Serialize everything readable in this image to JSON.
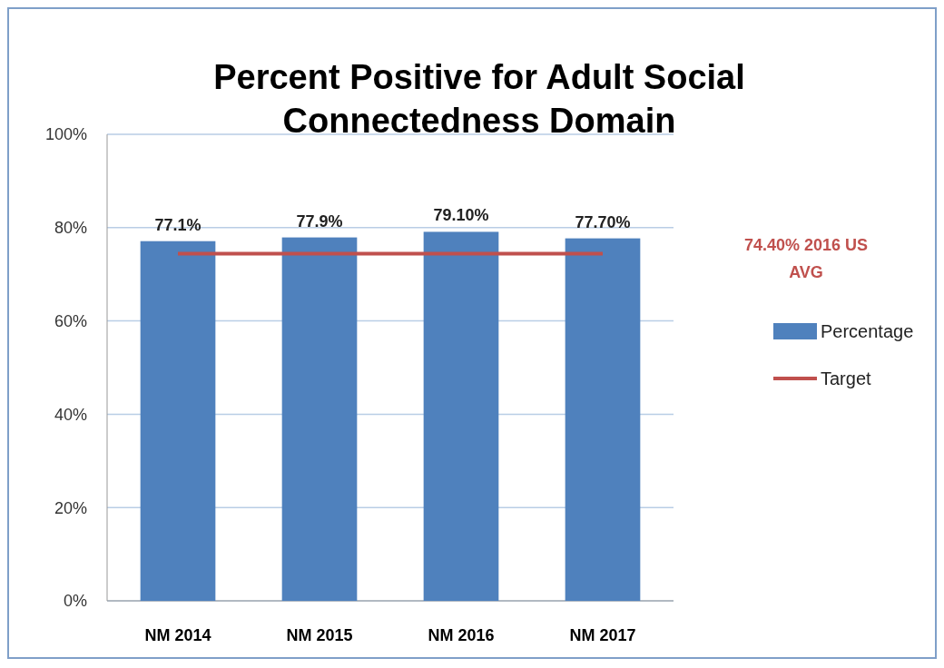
{
  "chart_data": {
    "type": "bar",
    "title": "Percent Positive for Adult Social Connectedness Domain",
    "categories": [
      "NM 2014",
      "NM 2015",
      "NM 2016",
      "NM 2017"
    ],
    "series": [
      {
        "name": "Percentage",
        "color": "#4f81bd",
        "values": [
          77.1,
          77.9,
          79.1,
          77.7
        ],
        "value_labels": [
          "77.1%",
          "77.9%",
          "79.10%",
          "77.70%"
        ]
      },
      {
        "name": "Target",
        "type": "line",
        "color": "#c0504d",
        "values": [
          74.4,
          74.4,
          74.4,
          74.4
        ]
      }
    ],
    "ylim": [
      0,
      100
    ],
    "yticks": [
      {
        "value": 0,
        "label": "0%"
      },
      {
        "value": 20,
        "label": "20%"
      },
      {
        "value": 40,
        "label": "40%"
      },
      {
        "value": 60,
        "label": "60%"
      },
      {
        "value": 80,
        "label": "80%"
      },
      {
        "value": 100,
        "label": "100%"
      }
    ],
    "grid": "y",
    "legend": "right",
    "marker": "none",
    "line_style": "solid",
    "annotations": [
      "74.40% 2016 US AVG"
    ]
  }
}
